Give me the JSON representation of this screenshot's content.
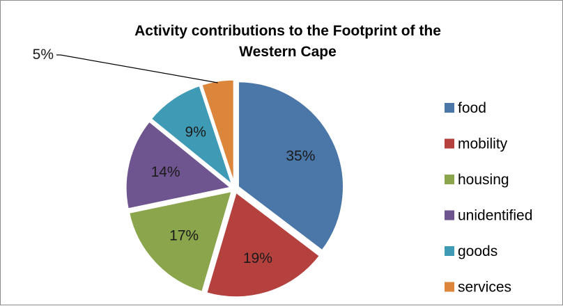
{
  "chart_data": {
    "type": "pie",
    "title_lines": [
      "Activity contributions to the Footprint of the",
      "Western Cape"
    ],
    "categories": [
      "food",
      "mobility",
      "housing",
      "unidentified",
      "goods",
      "services"
    ],
    "values": [
      35,
      19,
      17,
      14,
      9,
      5
    ],
    "labels": [
      "35%",
      "19%",
      "17%",
      "14%",
      "9%",
      "5%"
    ],
    "colors": [
      "#4a76a8",
      "#b5413e",
      "#8aa54b",
      "#6f558f",
      "#3f9bb5",
      "#dc863b"
    ],
    "legend_position": "right",
    "exploded": true
  }
}
